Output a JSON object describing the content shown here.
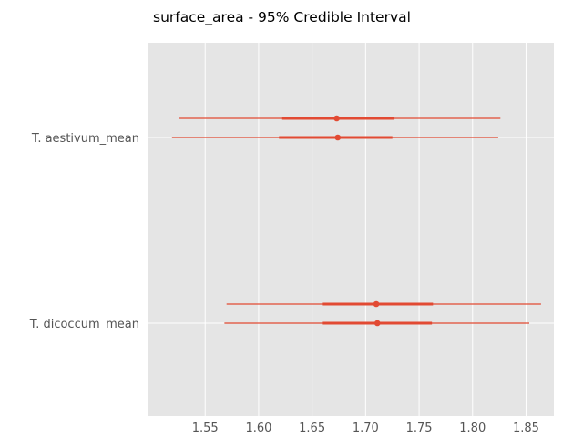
{
  "chart_data": {
    "type": "forest",
    "title": "surface_area - 95% Credible Interval",
    "xlabel": "",
    "ylabel": "",
    "xlim": [
      1.497,
      1.876
    ],
    "x_ticks": [
      1.55,
      1.6,
      1.65,
      1.7,
      1.75,
      1.8,
      1.85
    ],
    "x_tick_labels": [
      "1.55",
      "1.60",
      "1.65",
      "1.70",
      "1.75",
      "1.80",
      "1.85"
    ],
    "grid": true,
    "categories": [
      "T. aestivum_mean",
      "T. dicoccum_mean"
    ],
    "intervals": [
      {
        "category": "T. aestivum_mean",
        "chains": [
          {
            "low95": 1.526,
            "low50": 1.622,
            "mean": 1.673,
            "high50": 1.727,
            "high95": 1.826
          },
          {
            "low95": 1.519,
            "low50": 1.619,
            "mean": 1.674,
            "high50": 1.725,
            "high95": 1.824
          }
        ]
      },
      {
        "category": "T. dicoccum_mean",
        "chains": [
          {
            "low95": 1.57,
            "low50": 1.66,
            "mean": 1.71,
            "high50": 1.763,
            "high95": 1.864
          },
          {
            "low95": 1.568,
            "low50": 1.66,
            "mean": 1.711,
            "high50": 1.762,
            "high95": 1.853
          }
        ]
      }
    ],
    "colors": {
      "background": "#e5e5e5",
      "grid": "#ffffff",
      "series": "#e24a33",
      "tick_label": "#555555"
    }
  }
}
